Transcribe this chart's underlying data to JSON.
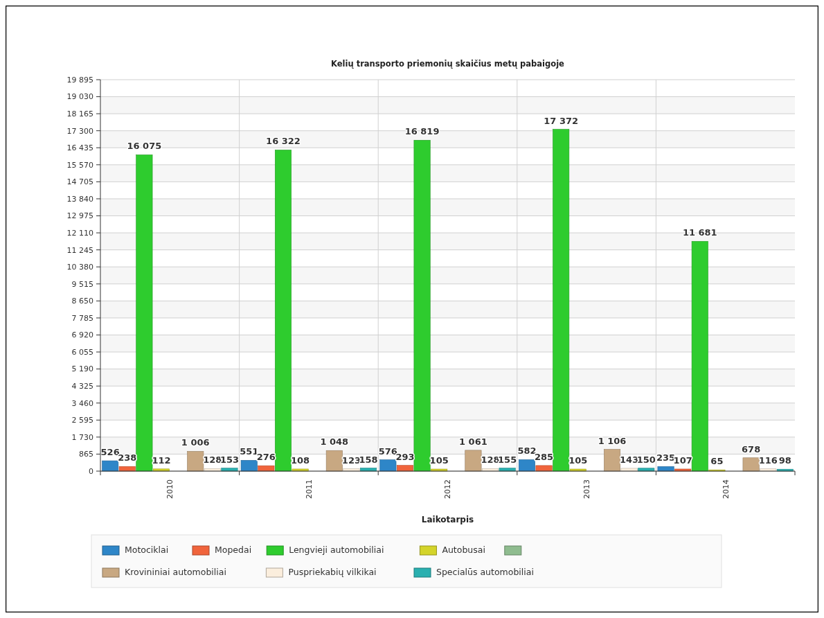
{
  "chart_data": {
    "type": "bar",
    "title": "Kelių transporto priemonių skaičius metų pabaigoje",
    "xlabel": "Laikotarpis",
    "categories": [
      "2010",
      "2011",
      "2012",
      "2013",
      "2014"
    ],
    "series": [
      {
        "name": "Motociklai",
        "color": "#2e86c8",
        "values": [
          526,
          551,
          576,
          582,
          235
        ],
        "value_labels": [
          "526",
          "551",
          "576",
          "582",
          "235"
        ]
      },
      {
        "name": "Mopedai",
        "color": "#f0643c",
        "values": [
          238,
          276,
          293,
          285,
          107
        ],
        "value_labels": [
          "238",
          "276",
          "293",
          "285",
          "107"
        ]
      },
      {
        "name": "Lengvieji automobiliai",
        "color": "#2ecc2e",
        "values": [
          16075,
          16322,
          16819,
          17372,
          11681
        ],
        "value_labels": [
          "16 075",
          "16 322",
          "16 819",
          "17 372",
          "11 681"
        ]
      },
      {
        "name": "Autobusai",
        "color": "#d4d42a",
        "values": [
          112,
          108,
          105,
          105,
          65
        ],
        "value_labels": [
          "112",
          "108",
          "105",
          "105",
          "65"
        ]
      },
      {
        "color": "#8fbc8f",
        "values": [
          null,
          null,
          null,
          null,
          null
        ]
      },
      {
        "name": "Krovininiai automobiliai",
        "color": "#c8a882",
        "values": [
          1006,
          1048,
          1061,
          1106,
          678
        ],
        "value_labels": [
          "1 006",
          "1 048",
          "1 061",
          "1 106",
          "678"
        ]
      },
      {
        "name": "Puspriekabių vilkikai",
        "color": "#fbeedd",
        "values": [
          128,
          123,
          128,
          143,
          116
        ],
        "value_labels": [
          "128",
          "123",
          "128",
          "143",
          "116"
        ]
      },
      {
        "name": "Specialūs automobiliai",
        "color": "#2ab0b0",
        "values": [
          153,
          158,
          155,
          150,
          98
        ],
        "value_labels": [
          "153",
          "158",
          "155",
          "150",
          "98"
        ]
      }
    ],
    "ylim": [
      0,
      19895
    ],
    "yticks": [
      0,
      865,
      {
        "value": 1730,
        "label": "1 730"
      },
      {
        "value": 2595,
        "label": "2 595"
      },
      {
        "value": 3460,
        "label": "3 460"
      },
      {
        "value": 4325,
        "label": "4 325"
      },
      {
        "value": 5190,
        "label": "5 190"
      },
      {
        "value": 6055,
        "label": "6 055"
      },
      {
        "value": 6920,
        "label": "6 920"
      },
      {
        "value": 7785,
        "label": "7 785"
      },
      {
        "value": 8650,
        "label": "8 650"
      },
      {
        "value": 9515,
        "label": "9 515"
      },
      {
        "value": 10380,
        "label": "10 380"
      },
      {
        "value": 11245,
        "label": "11 245"
      },
      {
        "value": 12110,
        "label": "12 110"
      },
      {
        "value": 12975,
        "label": "12 975"
      },
      {
        "value": 13840,
        "label": "13 840"
      },
      {
        "value": 14705,
        "label": "14 705"
      },
      {
        "value": 15570,
        "label": "15 570"
      },
      {
        "value": 16435,
        "label": "16 435"
      },
      {
        "value": 17300,
        "label": "17 300"
      },
      {
        "value": 18165,
        "label": "18 165"
      },
      {
        "value": 19030,
        "label": "19 030"
      },
      {
        "value": 19895,
        "label": "19 895"
      }
    ],
    "grid": true,
    "legend": "bottom"
  }
}
